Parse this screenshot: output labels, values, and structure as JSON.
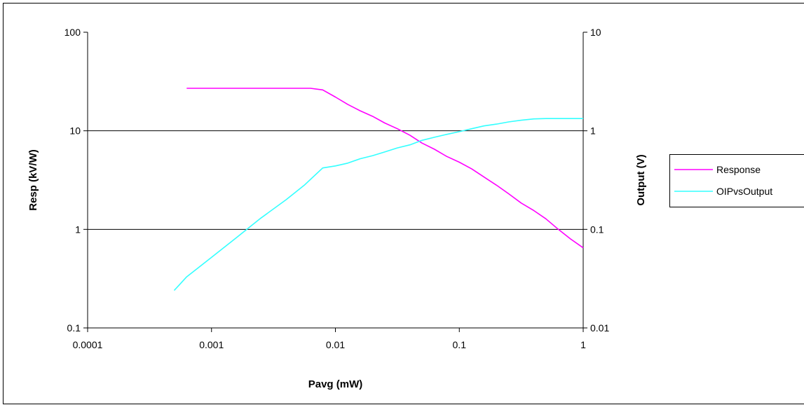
{
  "chart_data": {
    "type": "line",
    "xlabel": "Pavg (mW)",
    "ylabel": "Resp (kV/W)",
    "y2label": "Output (V)",
    "x_scale": "log",
    "y_scale": "log",
    "y2_scale": "log",
    "xlim": [
      0.0001,
      1
    ],
    "ylim": [
      0.1,
      100
    ],
    "y2lim": [
      0.01,
      10
    ],
    "x_ticks": [
      "0.0001",
      "0.001",
      "0.01",
      "0.1",
      "1"
    ],
    "y_ticks": [
      "0.1",
      "1",
      "10",
      "100"
    ],
    "y2_ticks": [
      "0.01",
      "0.1",
      "1",
      "10"
    ],
    "grid": "horizontal major",
    "legend_position": "right",
    "series": [
      {
        "name": "Response",
        "axis": "left",
        "color": "#ff00ff",
        "x": [
          0.00063,
          0.0063,
          0.0079,
          0.01,
          0.0126,
          0.0158,
          0.02,
          0.025,
          0.0316,
          0.04,
          0.05,
          0.063,
          0.079,
          0.1,
          0.126,
          0.158,
          0.2,
          0.25,
          0.316,
          0.4,
          0.5,
          0.63,
          0.79,
          1.0
        ],
        "y": [
          27,
          27,
          26,
          22,
          18.5,
          16,
          14,
          12,
          10.5,
          9,
          7.5,
          6.5,
          5.5,
          4.8,
          4.1,
          3.4,
          2.8,
          2.3,
          1.85,
          1.55,
          1.28,
          1.0,
          0.8,
          0.65
        ]
      },
      {
        "name": "OIPvsOutput",
        "axis": "right",
        "color": "#33ffff",
        "x": [
          0.0005,
          0.00063,
          0.001,
          0.00158,
          0.0025,
          0.004,
          0.0056,
          0.0079,
          0.01,
          0.0126,
          0.0158,
          0.02,
          0.025,
          0.0316,
          0.04,
          0.05,
          0.063,
          0.079,
          0.1,
          0.126,
          0.158,
          0.2,
          0.25,
          0.316,
          0.4,
          0.5,
          1.0
        ],
        "y": [
          0.024,
          0.033,
          0.052,
          0.082,
          0.13,
          0.2,
          0.28,
          0.42,
          0.44,
          0.47,
          0.52,
          0.56,
          0.61,
          0.67,
          0.72,
          0.8,
          0.86,
          0.92,
          0.98,
          1.05,
          1.12,
          1.17,
          1.23,
          1.28,
          1.32,
          1.33,
          1.33
        ]
      }
    ]
  }
}
